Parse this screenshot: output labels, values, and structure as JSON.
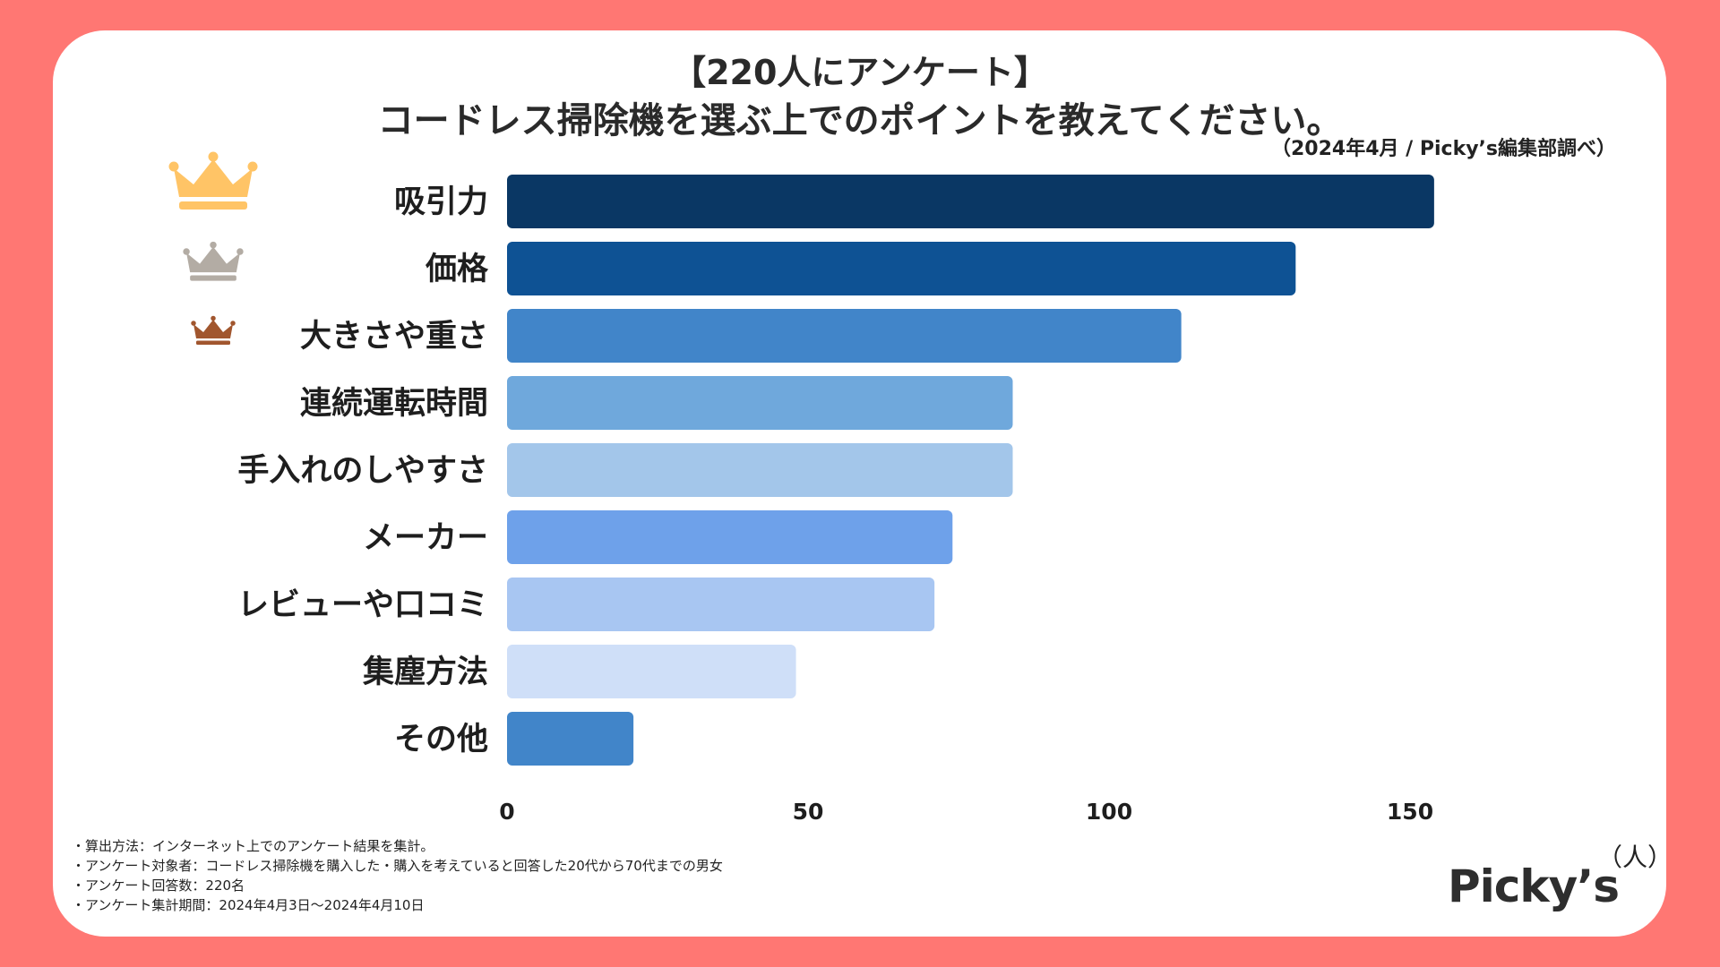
{
  "header": {
    "title_line1": "【220人にアンケート】",
    "title_line2": "コードレス掃除機を選ぶ上でのポイントを教えてください。",
    "source": "（2024年4月 / Picky’s編集部調べ）"
  },
  "chart_data": {
    "type": "bar",
    "orientation": "horizontal",
    "categories": [
      "吸引力",
      "価格",
      "大きさや重さ",
      "連続運転時間",
      "手入れのしやすさ",
      "メーカー",
      "レビューや口コミ",
      "集塵方法",
      "その他"
    ],
    "values": [
      154,
      131,
      112,
      84,
      84,
      74,
      71,
      48,
      21
    ],
    "bar_colors": [
      "#0a3764",
      "#0e5294",
      "#4185c9",
      "#6fa8dc",
      "#a3c6ea",
      "#6ea1ea",
      "#a8c6f2",
      "#cfdff8",
      "#4185c9"
    ],
    "xlim": [
      0,
      180
    ],
    "xticks": [
      0,
      50,
      100,
      150
    ],
    "xtick_labels": [
      "0",
      "50",
      "100",
      "150"
    ],
    "unit_label": "（人）",
    "rank_icons": [
      {
        "name": "gold-crown-icon",
        "color": "#ffc466"
      },
      {
        "name": "silver-crown-icon",
        "color": "#b3aca4"
      },
      {
        "name": "bronze-crown-icon",
        "color": "#a1562e"
      }
    ]
  },
  "footer": {
    "notes": [
      "・算出方法：インターネット上でのアンケート結果を集計。",
      "・アンケート対象者：コードレス掃除機を購入した・購入を考えていると回答した20代から70代までの男女",
      "・アンケート回答数：220名",
      "・アンケート集計期間：2024年4月3日〜2024年4月10日"
    ],
    "logo": "Picky’s"
  }
}
